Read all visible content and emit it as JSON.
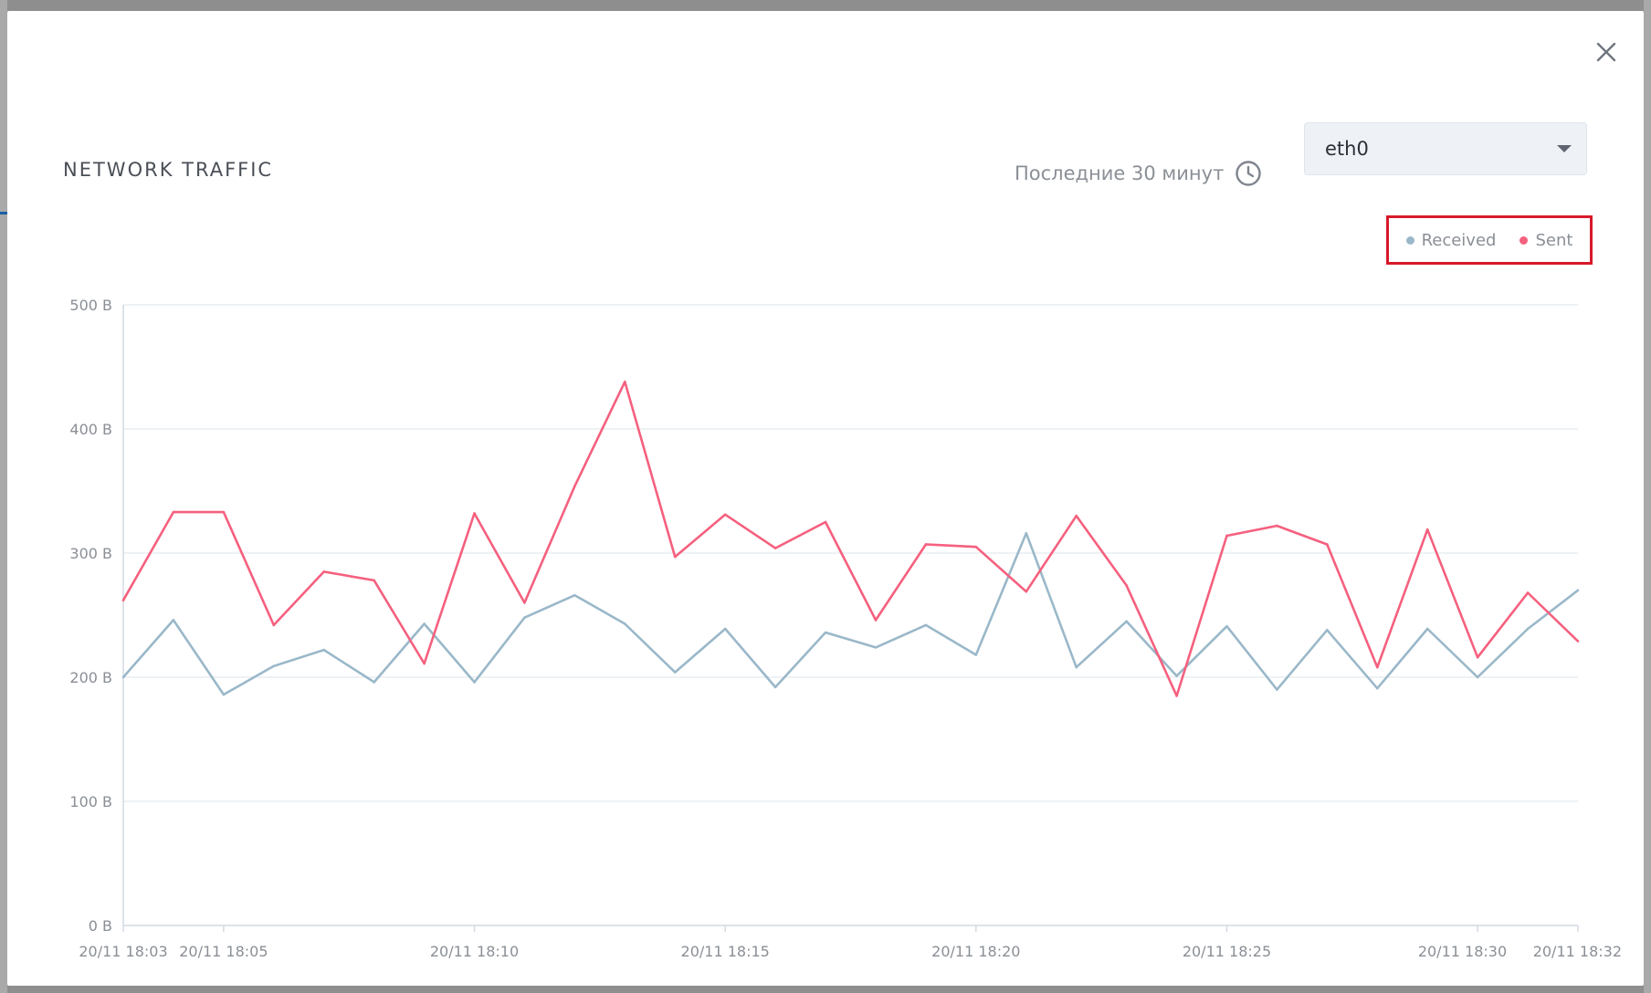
{
  "header": {
    "title": "NETWORK TRAFFIC",
    "time_range": "Последние 30 минут",
    "interface_select": "eth0"
  },
  "icons": {
    "close": "close-icon",
    "clock": "clock-icon",
    "dropdown": "chevron-down-icon"
  },
  "colors": {
    "received": "#9ab8c9",
    "sent": "#f5607e",
    "grid": "#e9edf2",
    "axis": "#d3dae3"
  },
  "chart_data": {
    "type": "line",
    "title": "NETWORK TRAFFIC",
    "xlabel": "",
    "ylabel": "",
    "x": [
      "18:03",
      "18:04",
      "18:05",
      "18:06",
      "18:07",
      "18:08",
      "18:09",
      "18:10",
      "18:11",
      "18:12",
      "18:13",
      "18:14",
      "18:15",
      "18:16",
      "18:17",
      "18:18",
      "18:19",
      "18:20",
      "18:21",
      "18:22",
      "18:23",
      "18:24",
      "18:25",
      "18:26",
      "18:27",
      "18:28",
      "18:29",
      "18:30",
      "18:31",
      "18:32"
    ],
    "x_ticks": [
      "20/11 18:03",
      "20/11 18:05",
      "20/11 18:10",
      "20/11 18:15",
      "20/11 18:20",
      "20/11 18:25",
      "20/11 18:30",
      "20/11 18:32"
    ],
    "x_tick_minutes": [
      3,
      5,
      10,
      15,
      20,
      25,
      30,
      32
    ],
    "y_ticks": [
      "0 B",
      "100 B",
      "200 B",
      "300 B",
      "400 B",
      "500 B"
    ],
    "y_tick_values": [
      0,
      100,
      200,
      300,
      400,
      500
    ],
    "ylim": [
      0,
      500
    ],
    "grid": true,
    "legend_position": "top-right",
    "series": [
      {
        "name": "Received",
        "color": "#9ab8c9",
        "values": [
          200,
          246,
          186,
          209,
          222,
          196,
          243,
          196,
          248,
          266,
          243,
          204,
          239,
          192,
          236,
          224,
          242,
          218,
          316,
          208,
          245,
          201,
          241,
          190,
          238,
          191,
          239,
          200,
          239,
          270
        ]
      },
      {
        "name": "Sent",
        "color": "#f5607e",
        "values": [
          262,
          333,
          333,
          242,
          285,
          278,
          211,
          332,
          260,
          354,
          438,
          297,
          331,
          304,
          325,
          246,
          307,
          305,
          269,
          330,
          274,
          185,
          314,
          322,
          307,
          208,
          319,
          216,
          268,
          229
        ]
      }
    ]
  }
}
